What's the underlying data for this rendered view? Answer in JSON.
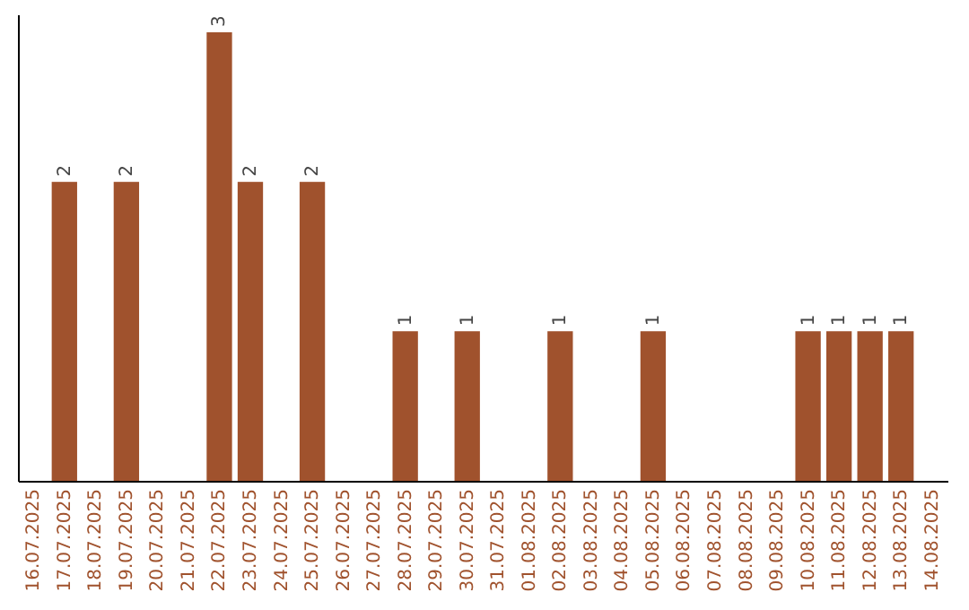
{
  "chart_data": {
    "type": "bar",
    "categories": [
      "16.07.2025",
      "17.07.2025",
      "18.07.2025",
      "19.07.2025",
      "20.07.2025",
      "21.07.2025",
      "22.07.2025",
      "23.07.2025",
      "24.07.2025",
      "25.07.2025",
      "26.07.2025",
      "27.07.2025",
      "28.07.2025",
      "29.07.2025",
      "30.07.2025",
      "31.07.2025",
      "01.08.2025",
      "02.08.2025",
      "03.08.2025",
      "04.08.2025",
      "05.08.2025",
      "06.08.2025",
      "07.08.2025",
      "08.08.2025",
      "09.08.2025",
      "10.08.2025",
      "11.08.2025",
      "12.08.2025",
      "13.08.2025",
      "14.08.2025"
    ],
    "values": [
      0,
      2,
      0,
      2,
      0,
      0,
      3,
      2,
      0,
      2,
      0,
      0,
      1,
      0,
      1,
      0,
      0,
      1,
      0,
      0,
      1,
      0,
      0,
      0,
      0,
      1,
      1,
      1,
      1,
      0
    ],
    "value_labels": [
      null,
      "2",
      null,
      "2",
      null,
      null,
      "3",
      "2",
      null,
      "2",
      null,
      null,
      "1",
      null,
      "1",
      null,
      null,
      "1",
      null,
      null,
      "1",
      null,
      null,
      null,
      null,
      "1",
      "1",
      "1",
      "1",
      null
    ],
    "color": "#a0522d",
    "ylim": [
      0,
      3.12
    ],
    "tick_labels": "x",
    "grid": false
  }
}
